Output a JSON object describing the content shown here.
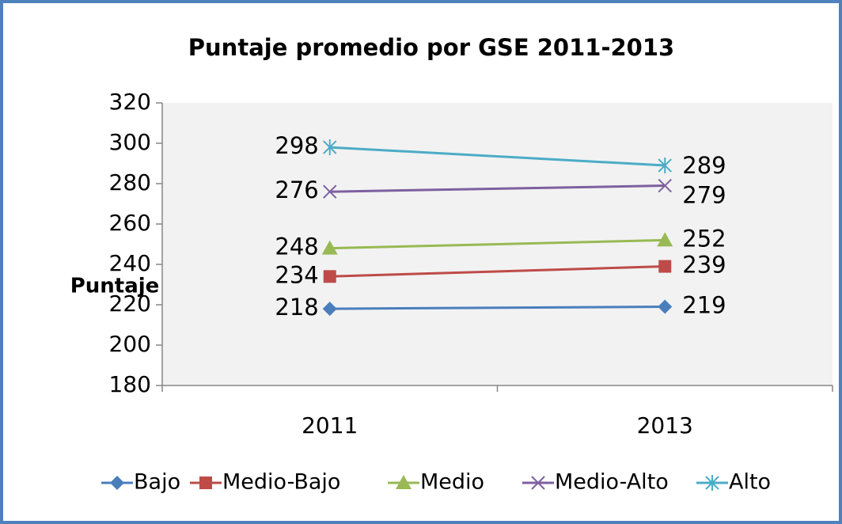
{
  "chart_data": {
    "type": "line",
    "title": "Puntaje promedio por GSE 2011-2013",
    "y_label": "Puntaje",
    "categories": [
      "2011",
      "2013"
    ],
    "series": [
      {
        "name": "Bajo",
        "color": "#4a7ebb",
        "marker": "diamond",
        "values": [
          218,
          219
        ]
      },
      {
        "name": "Medio-Bajo",
        "color": "#be4b48",
        "marker": "square",
        "values": [
          234,
          239
        ]
      },
      {
        "name": "Medio",
        "color": "#98b954",
        "marker": "triangle",
        "values": [
          248,
          252
        ]
      },
      {
        "name": "Medio-Alto",
        "color": "#7d60a0",
        "marker": "x",
        "values": [
          276,
          279
        ]
      },
      {
        "name": "Alto",
        "color": "#4bacc6",
        "marker": "star",
        "values": [
          298,
          289
        ]
      }
    ],
    "ylim": [
      180,
      320
    ],
    "yticks": [
      180,
      200,
      220,
      240,
      260,
      280,
      300,
      320
    ],
    "grid": false,
    "legend": "bottom"
  }
}
